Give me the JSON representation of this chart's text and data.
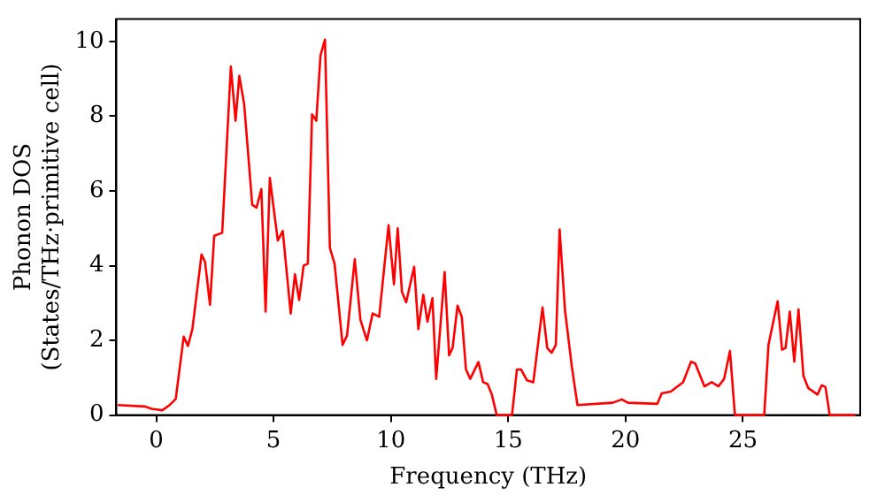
{
  "chart_data": {
    "type": "line",
    "xlabel": "Frequency (THz)",
    "ylabel": "Phonon DOS\n(States/THz·primitive cell)",
    "xlim": [
      -1.7,
      30
    ],
    "ylim": [
      0,
      10.6
    ],
    "xticks": [
      0,
      5,
      10,
      15,
      20,
      25
    ],
    "yticks": [
      0,
      2,
      4,
      6,
      8,
      10
    ],
    "grid": false,
    "legend": false,
    "marker": "none",
    "line_style": "solid",
    "series": [
      {
        "color": "#ff0000",
        "x": [
          -1.64,
          -0.47,
          -0.2,
          0.26,
          0.57,
          0.83,
          1.17,
          1.35,
          1.54,
          1.93,
          2.08,
          2.29,
          2.47,
          2.81,
          3.18,
          3.38,
          3.54,
          3.75,
          4.09,
          4.27,
          4.48,
          4.66,
          4.84,
          5.18,
          5.39,
          5.73,
          5.91,
          6.09,
          6.28,
          6.46,
          6.64,
          6.82,
          7.0,
          7.19,
          7.4,
          7.6,
          7.94,
          8.13,
          8.46,
          8.7,
          8.98,
          9.22,
          9.5,
          9.9,
          10.13,
          10.29,
          10.47,
          10.65,
          10.99,
          11.17,
          11.38,
          11.56,
          11.77,
          11.93,
          12.29,
          12.48,
          12.63,
          12.84,
          13.02,
          13.2,
          13.38,
          13.73,
          13.93,
          14.12,
          14.3,
          14.51,
          15.16,
          15.37,
          15.55,
          15.8,
          16.07,
          16.46,
          16.66,
          16.85,
          17.03,
          17.19,
          17.42,
          17.71,
          17.95,
          19.45,
          19.84,
          20.1,
          21.35,
          21.54,
          21.93,
          22.45,
          22.79,
          22.97,
          23.36,
          23.67,
          23.96,
          24.2,
          24.45,
          24.66,
          25.91,
          26.09,
          26.48,
          26.67,
          26.82,
          27.0,
          27.19,
          27.37,
          27.58,
          27.79,
          28.18,
          28.36,
          28.52,
          28.7,
          29.8
        ],
        "values": [
          0.27,
          0.23,
          0.17,
          0.13,
          0.27,
          0.43,
          2.1,
          1.85,
          2.3,
          4.3,
          4.1,
          2.95,
          4.8,
          4.88,
          9.33,
          7.88,
          9.08,
          8.3,
          5.63,
          5.55,
          6.05,
          2.77,
          6.35,
          4.67,
          4.93,
          2.72,
          3.77,
          3.08,
          4.0,
          4.05,
          8.05,
          7.88,
          9.63,
          10.05,
          4.47,
          4.05,
          1.88,
          2.13,
          4.17,
          2.55,
          2.0,
          2.72,
          2.63,
          5.08,
          3.5,
          5.0,
          3.3,
          3.02,
          3.97,
          2.3,
          3.22,
          2.5,
          3.13,
          0.97,
          3.83,
          1.6,
          1.8,
          2.93,
          2.63,
          1.22,
          0.97,
          1.42,
          0.88,
          0.83,
          0.55,
          0,
          0,
          1.22,
          1.22,
          0.93,
          0.88,
          2.88,
          1.8,
          1.67,
          1.88,
          4.97,
          2.8,
          1.3,
          0.27,
          0.33,
          0.42,
          0.33,
          0.3,
          0.58,
          0.63,
          0.88,
          1.43,
          1.38,
          0.77,
          0.88,
          0.77,
          0.97,
          1.72,
          0,
          0,
          1.88,
          3.05,
          1.75,
          1.8,
          2.77,
          1.43,
          2.83,
          1.05,
          0.72,
          0.55,
          0.8,
          0.75,
          0,
          0
        ]
      }
    ]
  }
}
